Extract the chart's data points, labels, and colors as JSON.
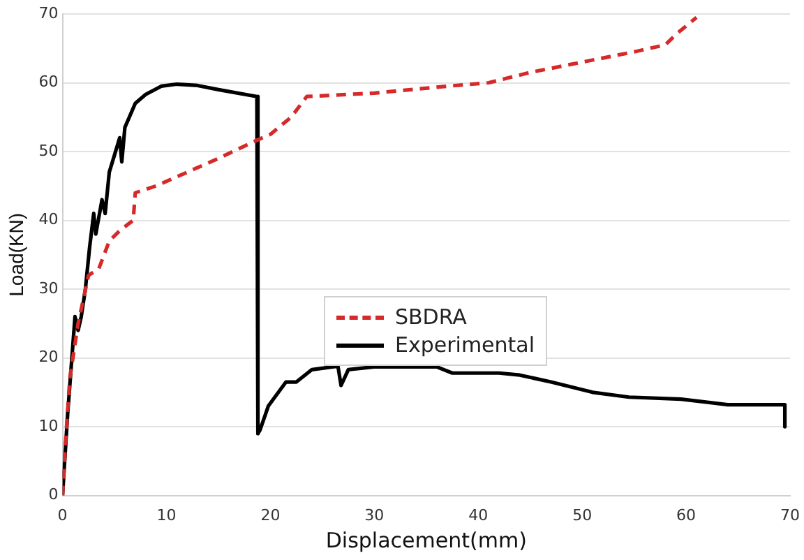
{
  "chart_data": {
    "type": "line",
    "xlabel": "Displacement(mm)",
    "ylabel": "Load(KN)",
    "xlim": [
      0,
      70
    ],
    "xticks": [
      0,
      10,
      20,
      30,
      40,
      50,
      60,
      70
    ],
    "ylim": [
      0,
      70
    ],
    "yticks": [
      0,
      10,
      20,
      30,
      40,
      50,
      60,
      70
    ],
    "grid": "y",
    "legend": "center",
    "marker": "none",
    "series": [
      {
        "name": "SBDRA",
        "color": "#d62a2a",
        "line_style": "dashed",
        "x": [
          0,
          0.3,
          0.7,
          1.5,
          2.5,
          3.5,
          4.5,
          5.5,
          6.8,
          7,
          9,
          12,
          15,
          18.5,
          20,
          22,
          23.5,
          30,
          37,
          41,
          45,
          50,
          55,
          58,
          59,
          61
        ],
        "values": [
          0,
          8,
          17,
          25,
          32,
          33,
          37,
          38.5,
          40,
          44,
          45,
          47,
          49,
          51.5,
          52.5,
          55,
          58,
          58.5,
          59.5,
          60,
          61.5,
          63,
          64.5,
          65.5,
          67,
          69.5
        ]
      },
      {
        "name": "Experimental",
        "color": "#000000",
        "line_style": "solid",
        "x": [
          0,
          0.5,
          1,
          1.2,
          1.5,
          1.8,
          2.2,
          2.6,
          3,
          3.2,
          3.5,
          3.8,
          4.1,
          4.5,
          5,
          5.5,
          5.7,
          6,
          7,
          8,
          9.5,
          11,
          13,
          15,
          18.7,
          18.8,
          19,
          19.8,
          21.5,
          22.5,
          24,
          26.5,
          26.8,
          27.5,
          30,
          36,
          37.5,
          42,
          44,
          47,
          51,
          54.5,
          59.5,
          64,
          69.5,
          69.5
        ],
        "values": [
          0,
          12,
          22,
          26,
          24,
          26,
          30,
          36,
          41,
          38,
          40.5,
          43,
          41,
          47,
          49.5,
          52,
          48.5,
          53.5,
          57,
          58.3,
          59.5,
          59.8,
          59.6,
          59,
          58,
          9,
          9.5,
          13,
          16.5,
          16.5,
          18.3,
          18.8,
          16,
          18.3,
          18.7,
          18.7,
          17.8,
          17.8,
          17.5,
          16.5,
          15,
          14.3,
          14,
          13.2,
          13.2,
          10
        ]
      }
    ]
  }
}
